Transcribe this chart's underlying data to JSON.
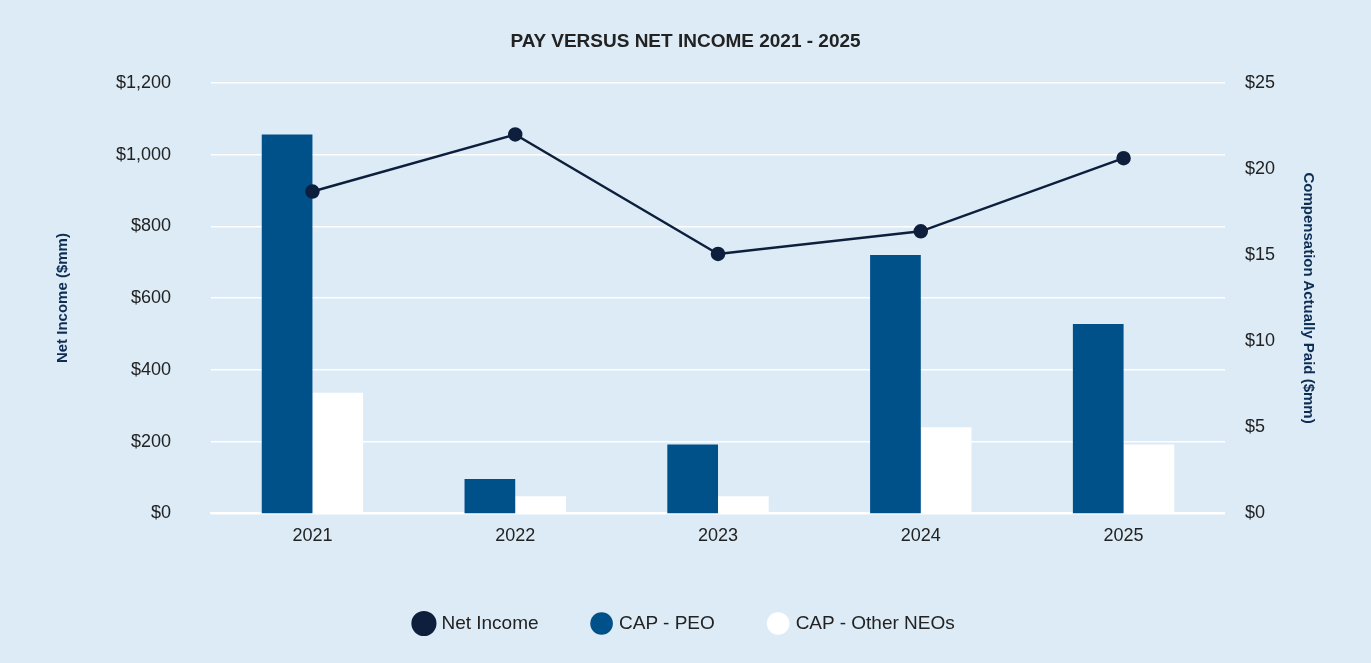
{
  "chart_data": {
    "type": "bar",
    "title": "PAY VERSUS NET INCOME 2021 - 2025",
    "categories": [
      "2021",
      "2022",
      "2023",
      "2024",
      "2025"
    ],
    "series": [
      {
        "name": "CAP - PEO",
        "color": "#00508a",
        "axis": "y2",
        "values": [
          22,
          2,
          4,
          15,
          11
        ]
      },
      {
        "name": "CAP - Other NEOs",
        "color": "#ffffff",
        "axis": "y2",
        "values": [
          7,
          1,
          1,
          5,
          4
        ]
      },
      {
        "name": "Net Income",
        "type": "line",
        "color": "#0d1f3c",
        "marker": "circle",
        "values": [
          897,
          1056,
          723,
          786,
          990
        ]
      }
    ],
    "ylabel": "Net Income ($mm)",
    "y2label": "Compensation Actually Paid ($mm)",
    "ylim": [
      0,
      1200
    ],
    "yticks": [
      {
        "value": 0,
        "label": "$0"
      },
      {
        "value": 200,
        "label": "$200"
      },
      {
        "value": 400,
        "label": "$400"
      },
      {
        "value": 600,
        "label": "$600"
      },
      {
        "value": 800,
        "label": "$800"
      },
      {
        "value": 1000,
        "label": "$1,000"
      },
      {
        "value": 1200,
        "label": "$1,200"
      }
    ],
    "y2lim": [
      0,
      25
    ],
    "y2ticks": [
      {
        "value": 0,
        "label": "$0"
      },
      {
        "value": 5,
        "label": "$5"
      },
      {
        "value": 10,
        "label": "$10"
      },
      {
        "value": 15,
        "label": "$15"
      },
      {
        "value": 20,
        "label": "$20"
      },
      {
        "value": 25,
        "label": "$25"
      }
    ],
    "grid": "y",
    "legend": "bottom"
  }
}
